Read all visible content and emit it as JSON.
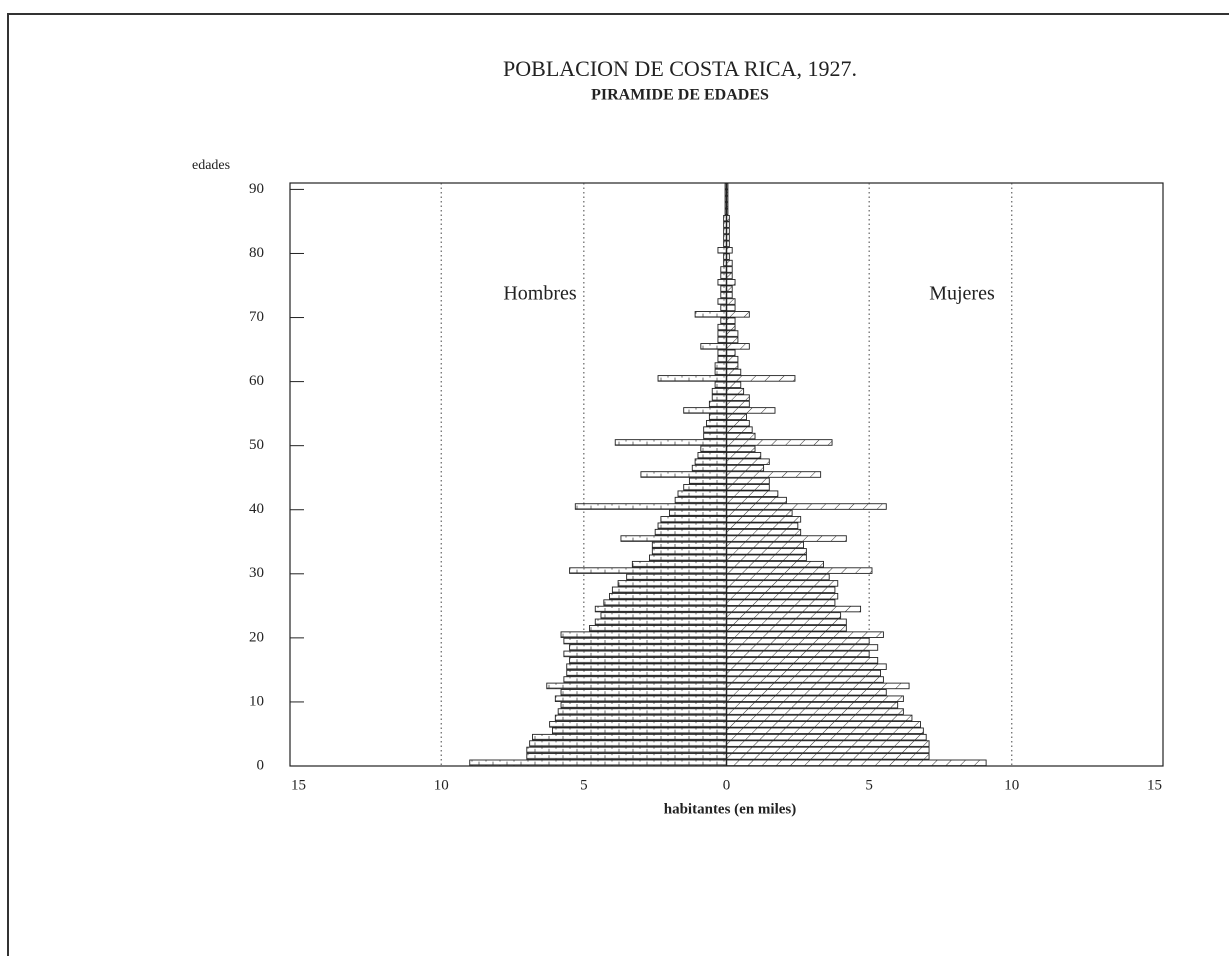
{
  "chart_data": {
    "type": "pyramid",
    "title": "POBLACION DE COSTA RICA, 1927.",
    "subtitle": "PIRAMIDE DE EDADES",
    "y_label": "edades",
    "x_label": "habitantes (en miles)",
    "categories": [
      0,
      1,
      2,
      3,
      4,
      5,
      6,
      7,
      8,
      9,
      10,
      11,
      12,
      13,
      14,
      15,
      16,
      17,
      18,
      19,
      20,
      21,
      22,
      23,
      24,
      25,
      26,
      27,
      28,
      29,
      30,
      31,
      32,
      33,
      34,
      35,
      36,
      37,
      38,
      39,
      40,
      41,
      42,
      43,
      44,
      45,
      46,
      47,
      48,
      49,
      50,
      51,
      52,
      53,
      54,
      55,
      56,
      57,
      58,
      59,
      60,
      61,
      62,
      63,
      64,
      65,
      66,
      67,
      68,
      69,
      70,
      71,
      72,
      73,
      74,
      75,
      76,
      77,
      78,
      79,
      80,
      81,
      82,
      83,
      84,
      85,
      86,
      87,
      88,
      89,
      90
    ],
    "series": [
      {
        "name": "Hombres",
        "color": "#222222",
        "side": "left",
        "values": [
          9.0,
          7.0,
          7.0,
          6.9,
          6.8,
          6.1,
          6.2,
          6.0,
          5.9,
          5.8,
          6.0,
          5.8,
          6.3,
          5.7,
          5.6,
          5.6,
          5.5,
          5.7,
          5.5,
          5.7,
          5.8,
          4.8,
          4.6,
          4.4,
          4.6,
          4.3,
          4.1,
          4.0,
          3.8,
          3.5,
          5.5,
          3.3,
          2.7,
          2.6,
          2.6,
          3.7,
          2.5,
          2.4,
          2.3,
          2.0,
          5.3,
          1.8,
          1.7,
          1.5,
          1.3,
          3.0,
          1.2,
          1.1,
          1.0,
          0.9,
          3.9,
          0.8,
          0.8,
          0.7,
          0.6,
          1.5,
          0.6,
          0.5,
          0.5,
          0.4,
          2.4,
          0.4,
          0.4,
          0.3,
          0.3,
          0.9,
          0.3,
          0.3,
          0.3,
          0.2,
          1.1,
          0.2,
          0.3,
          0.2,
          0.2,
          0.3,
          0.2,
          0.2,
          0.1,
          0.1,
          0.3,
          0.1,
          0.1,
          0.1,
          0.1,
          0.1,
          0.05,
          0.05,
          0.05,
          0.05,
          0.05
        ]
      },
      {
        "name": "Mujeres",
        "color": "#222222",
        "side": "right",
        "values": [
          9.1,
          7.1,
          7.1,
          7.1,
          7.0,
          6.9,
          6.8,
          6.5,
          6.2,
          6.0,
          6.2,
          5.6,
          6.4,
          5.5,
          5.4,
          5.6,
          5.3,
          5.0,
          5.3,
          5.0,
          5.5,
          4.2,
          4.2,
          4.0,
          4.7,
          3.8,
          3.9,
          3.8,
          3.9,
          3.6,
          5.1,
          3.4,
          2.8,
          2.8,
          2.7,
          4.2,
          2.6,
          2.5,
          2.6,
          2.3,
          5.6,
          2.1,
          1.8,
          1.5,
          1.5,
          3.3,
          1.3,
          1.5,
          1.2,
          1.0,
          3.7,
          1.0,
          0.9,
          0.8,
          0.7,
          1.7,
          0.8,
          0.8,
          0.6,
          0.5,
          2.4,
          0.5,
          0.4,
          0.4,
          0.3,
          0.8,
          0.4,
          0.4,
          0.3,
          0.3,
          0.8,
          0.3,
          0.3,
          0.2,
          0.2,
          0.3,
          0.2,
          0.2,
          0.2,
          0.1,
          0.2,
          0.1,
          0.1,
          0.1,
          0.1,
          0.1,
          0.05,
          0.05,
          0.05,
          0.05,
          0.05
        ]
      }
    ],
    "xlim": [
      -15.3,
      15.3
    ],
    "xticks": [
      {
        "value": -15,
        "label": "15"
      },
      {
        "value": -10,
        "label": "10"
      },
      {
        "value": -5,
        "label": "5"
      },
      0,
      5,
      10,
      15
    ],
    "ylim": [
      0,
      91
    ],
    "yticks": [
      0,
      10,
      20,
      30,
      40,
      50,
      60,
      70,
      80,
      90
    ],
    "grid": true
  }
}
